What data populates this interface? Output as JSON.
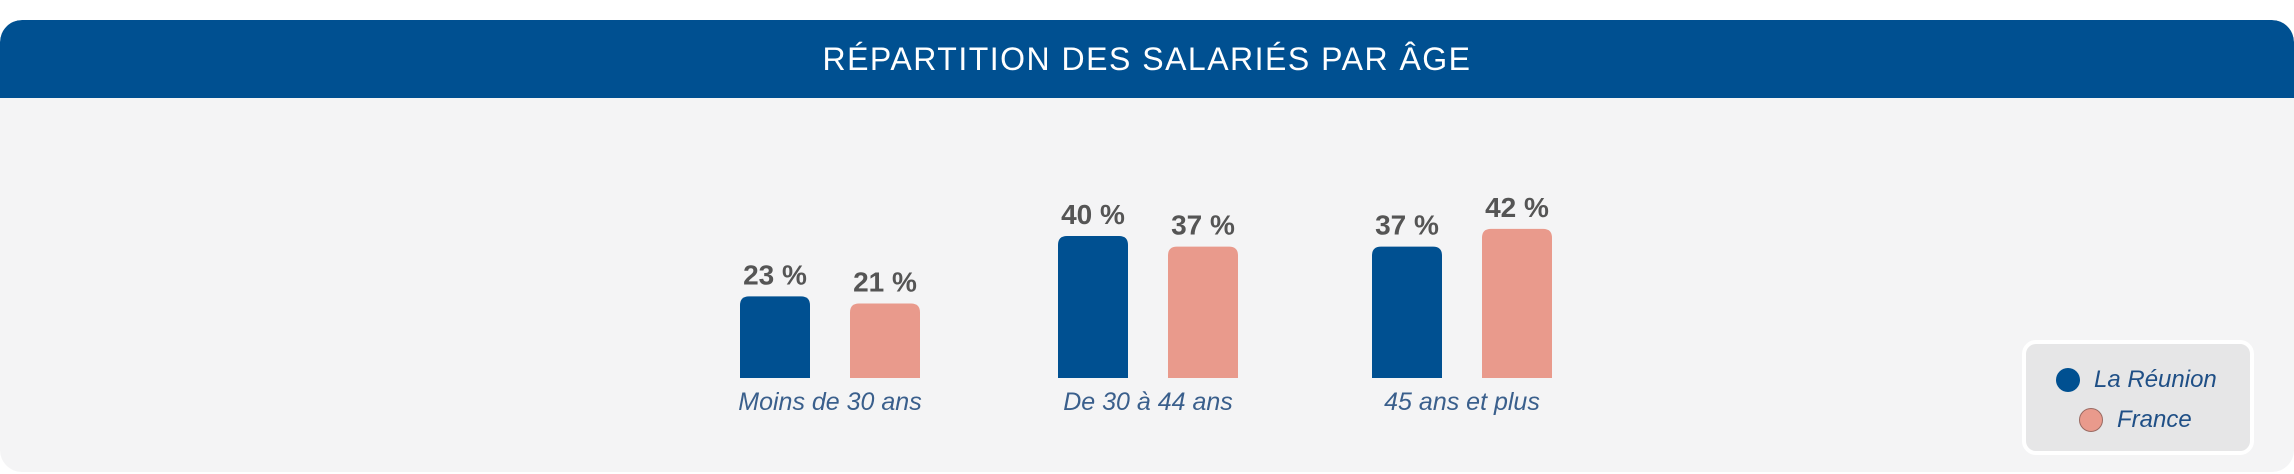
{
  "header": {
    "title": "RÉPARTITION DES SALARIÉS PAR ÂGE"
  },
  "colors": {
    "header_bg": "#005091",
    "reunion": "#005091",
    "france": "#e99a8c",
    "value_text": "#555555",
    "category_text": "#3a5f8c"
  },
  "legend": {
    "items": [
      {
        "label": "La Réunion",
        "color": "#005091"
      },
      {
        "label": "France",
        "color": "#e99a8c"
      }
    ],
    "placement": "bottom-right"
  },
  "chart_data": {
    "type": "bar",
    "title": "RÉPARTITION DES SALARIÉS PAR ÂGE",
    "categories": [
      "Moins de 30 ans",
      "De 30 à 44 ans",
      "45 ans et plus"
    ],
    "series": [
      {
        "name": "La Réunion",
        "values": [
          23,
          40,
          37
        ],
        "labels": [
          "23 %",
          "40 %",
          "37 %"
        ]
      },
      {
        "name": "France",
        "values": [
          21,
          37,
          42
        ],
        "labels": [
          "21 %",
          "37 %",
          "42 %"
        ]
      }
    ],
    "unit": "%",
    "ylim": [
      0,
      42
    ],
    "grid": false
  }
}
